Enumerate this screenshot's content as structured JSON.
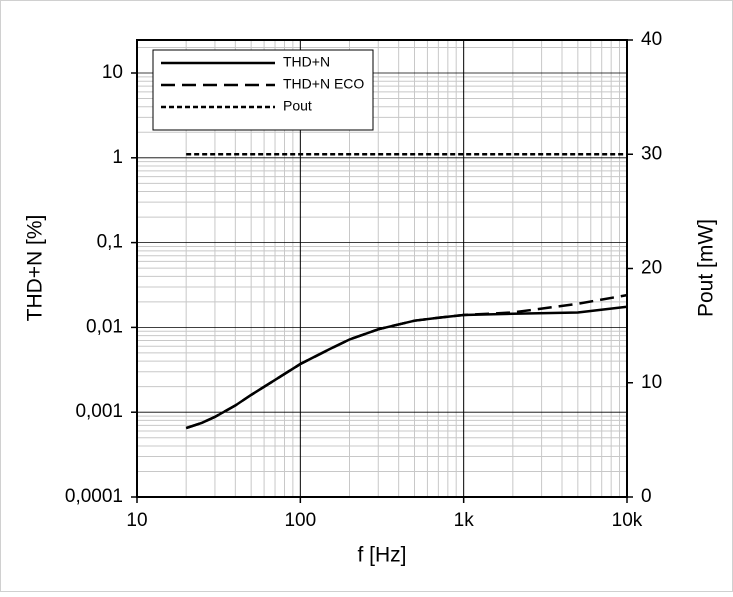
{
  "chart_data": {
    "type": "line",
    "xlabel": "f [Hz]",
    "ylabel": "THD+N [%]",
    "y2label": "Pout [mW]",
    "xlog": true,
    "ylog": true,
    "grid": true,
    "minor_grid": true,
    "legend": "upper left",
    "xlim": [
      10,
      10000
    ],
    "xticks": [
      10,
      100,
      {
        "value": 1000,
        "label": "1k"
      },
      {
        "value": 10000,
        "label": "10k"
      }
    ],
    "ylim": [
      0.0001,
      24.5
    ],
    "yticks": [
      {
        "value": 0.0001,
        "label": "0,0001"
      },
      {
        "value": 0.001,
        "label": "0,001"
      },
      {
        "value": 0.01,
        "label": "0,01"
      },
      {
        "value": 0.1,
        "label": "0,1"
      },
      1,
      10
    ],
    "y2lim": [
      0,
      40
    ],
    "y2ticks": [
      0,
      10,
      20,
      30,
      40
    ],
    "series": [
      {
        "name": "THD+N",
        "color": "#000000",
        "dash": "solid",
        "x": [
          20,
          25,
          30,
          40,
          50,
          70,
          100,
          150,
          200,
          300,
          500,
          700,
          1000,
          2000,
          5000,
          10000
        ],
        "values": [
          0.00065,
          0.00075,
          0.00088,
          0.0012,
          0.0016,
          0.0024,
          0.0037,
          0.0055,
          0.0072,
          0.0095,
          0.012,
          0.013,
          0.014,
          0.0145,
          0.015,
          0.0175
        ]
      },
      {
        "name": "THD+N ECO",
        "color": "#000000",
        "dash": "dashed",
        "x": [
          20,
          25,
          30,
          40,
          50,
          70,
          100,
          150,
          200,
          300,
          500,
          700,
          1000,
          2000,
          5000,
          10000
        ],
        "values": [
          0.00065,
          0.00075,
          0.00088,
          0.0012,
          0.0016,
          0.0024,
          0.0037,
          0.0055,
          0.0072,
          0.0095,
          0.012,
          0.013,
          0.014,
          0.015,
          0.019,
          0.024
        ]
      },
      {
        "name": "Pout",
        "color": "#000000",
        "dash": "dotted",
        "axis": "y2",
        "x": [
          20,
          10000
        ],
        "values": [
          30,
          30
        ]
      }
    ]
  }
}
